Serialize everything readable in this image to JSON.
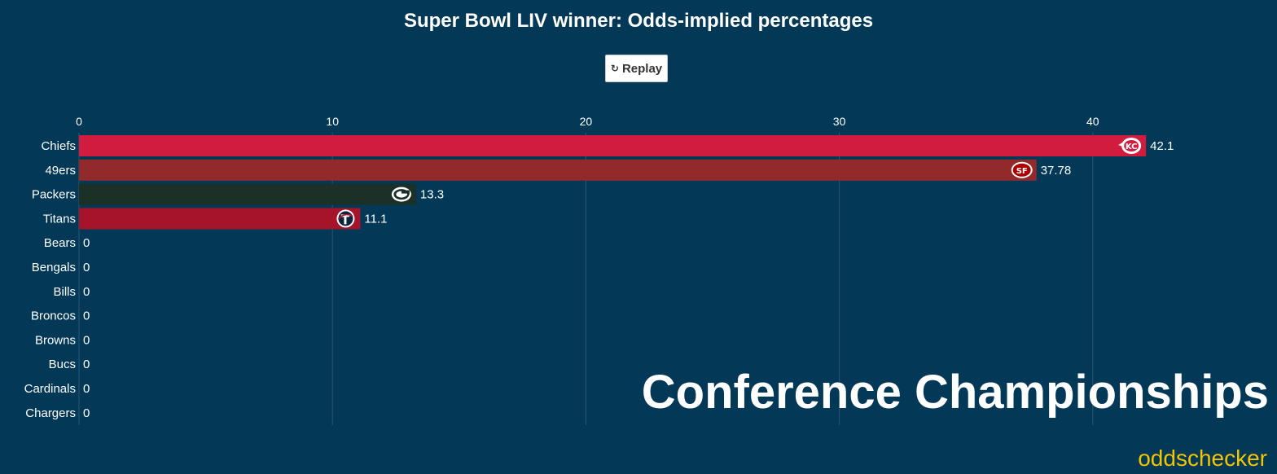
{
  "header": {
    "title": "Super Bowl LIV winner: Odds-implied percentages",
    "replay_label": "Replay"
  },
  "overlay": {
    "stage_label": "Conference Championships",
    "brand": "oddschecker"
  },
  "chart_data": {
    "type": "bar",
    "orientation": "horizontal",
    "title": "Super Bowl LIV winner: Odds-implied percentages",
    "xlim": [
      0,
      45
    ],
    "x_ticks": [
      0,
      10,
      20,
      30,
      40
    ],
    "grid": true,
    "categories": [
      "Chiefs",
      "49ers",
      "Packers",
      "Titans",
      "Bears",
      "Bengals",
      "Bills",
      "Broncos",
      "Browns",
      "Bucs",
      "Cardinals",
      "Chargers"
    ],
    "values": [
      42.1,
      37.78,
      13.3,
      11.1,
      0,
      0,
      0,
      0,
      0,
      0,
      0,
      0
    ],
    "value_labels": [
      "42.1",
      "37.78",
      "13.3",
      "11.1",
      "0",
      "0",
      "0",
      "0",
      "0",
      "0",
      "0",
      "0"
    ],
    "colors": [
      "#d11c3d",
      "#922a2c",
      "#1b3027",
      "#a51428",
      "#0b1f33",
      "#fb4f14",
      "#00338d",
      "#fb4f14",
      "#311d00",
      "#d50a0a",
      "#97233f",
      "#0080c6"
    ],
    "logos": [
      "chiefs-logo-icon",
      "49ers-logo-icon",
      "packers-logo-icon",
      "titans-logo-icon",
      "",
      "",
      "",
      "",
      "",
      "",
      "",
      ""
    ]
  }
}
